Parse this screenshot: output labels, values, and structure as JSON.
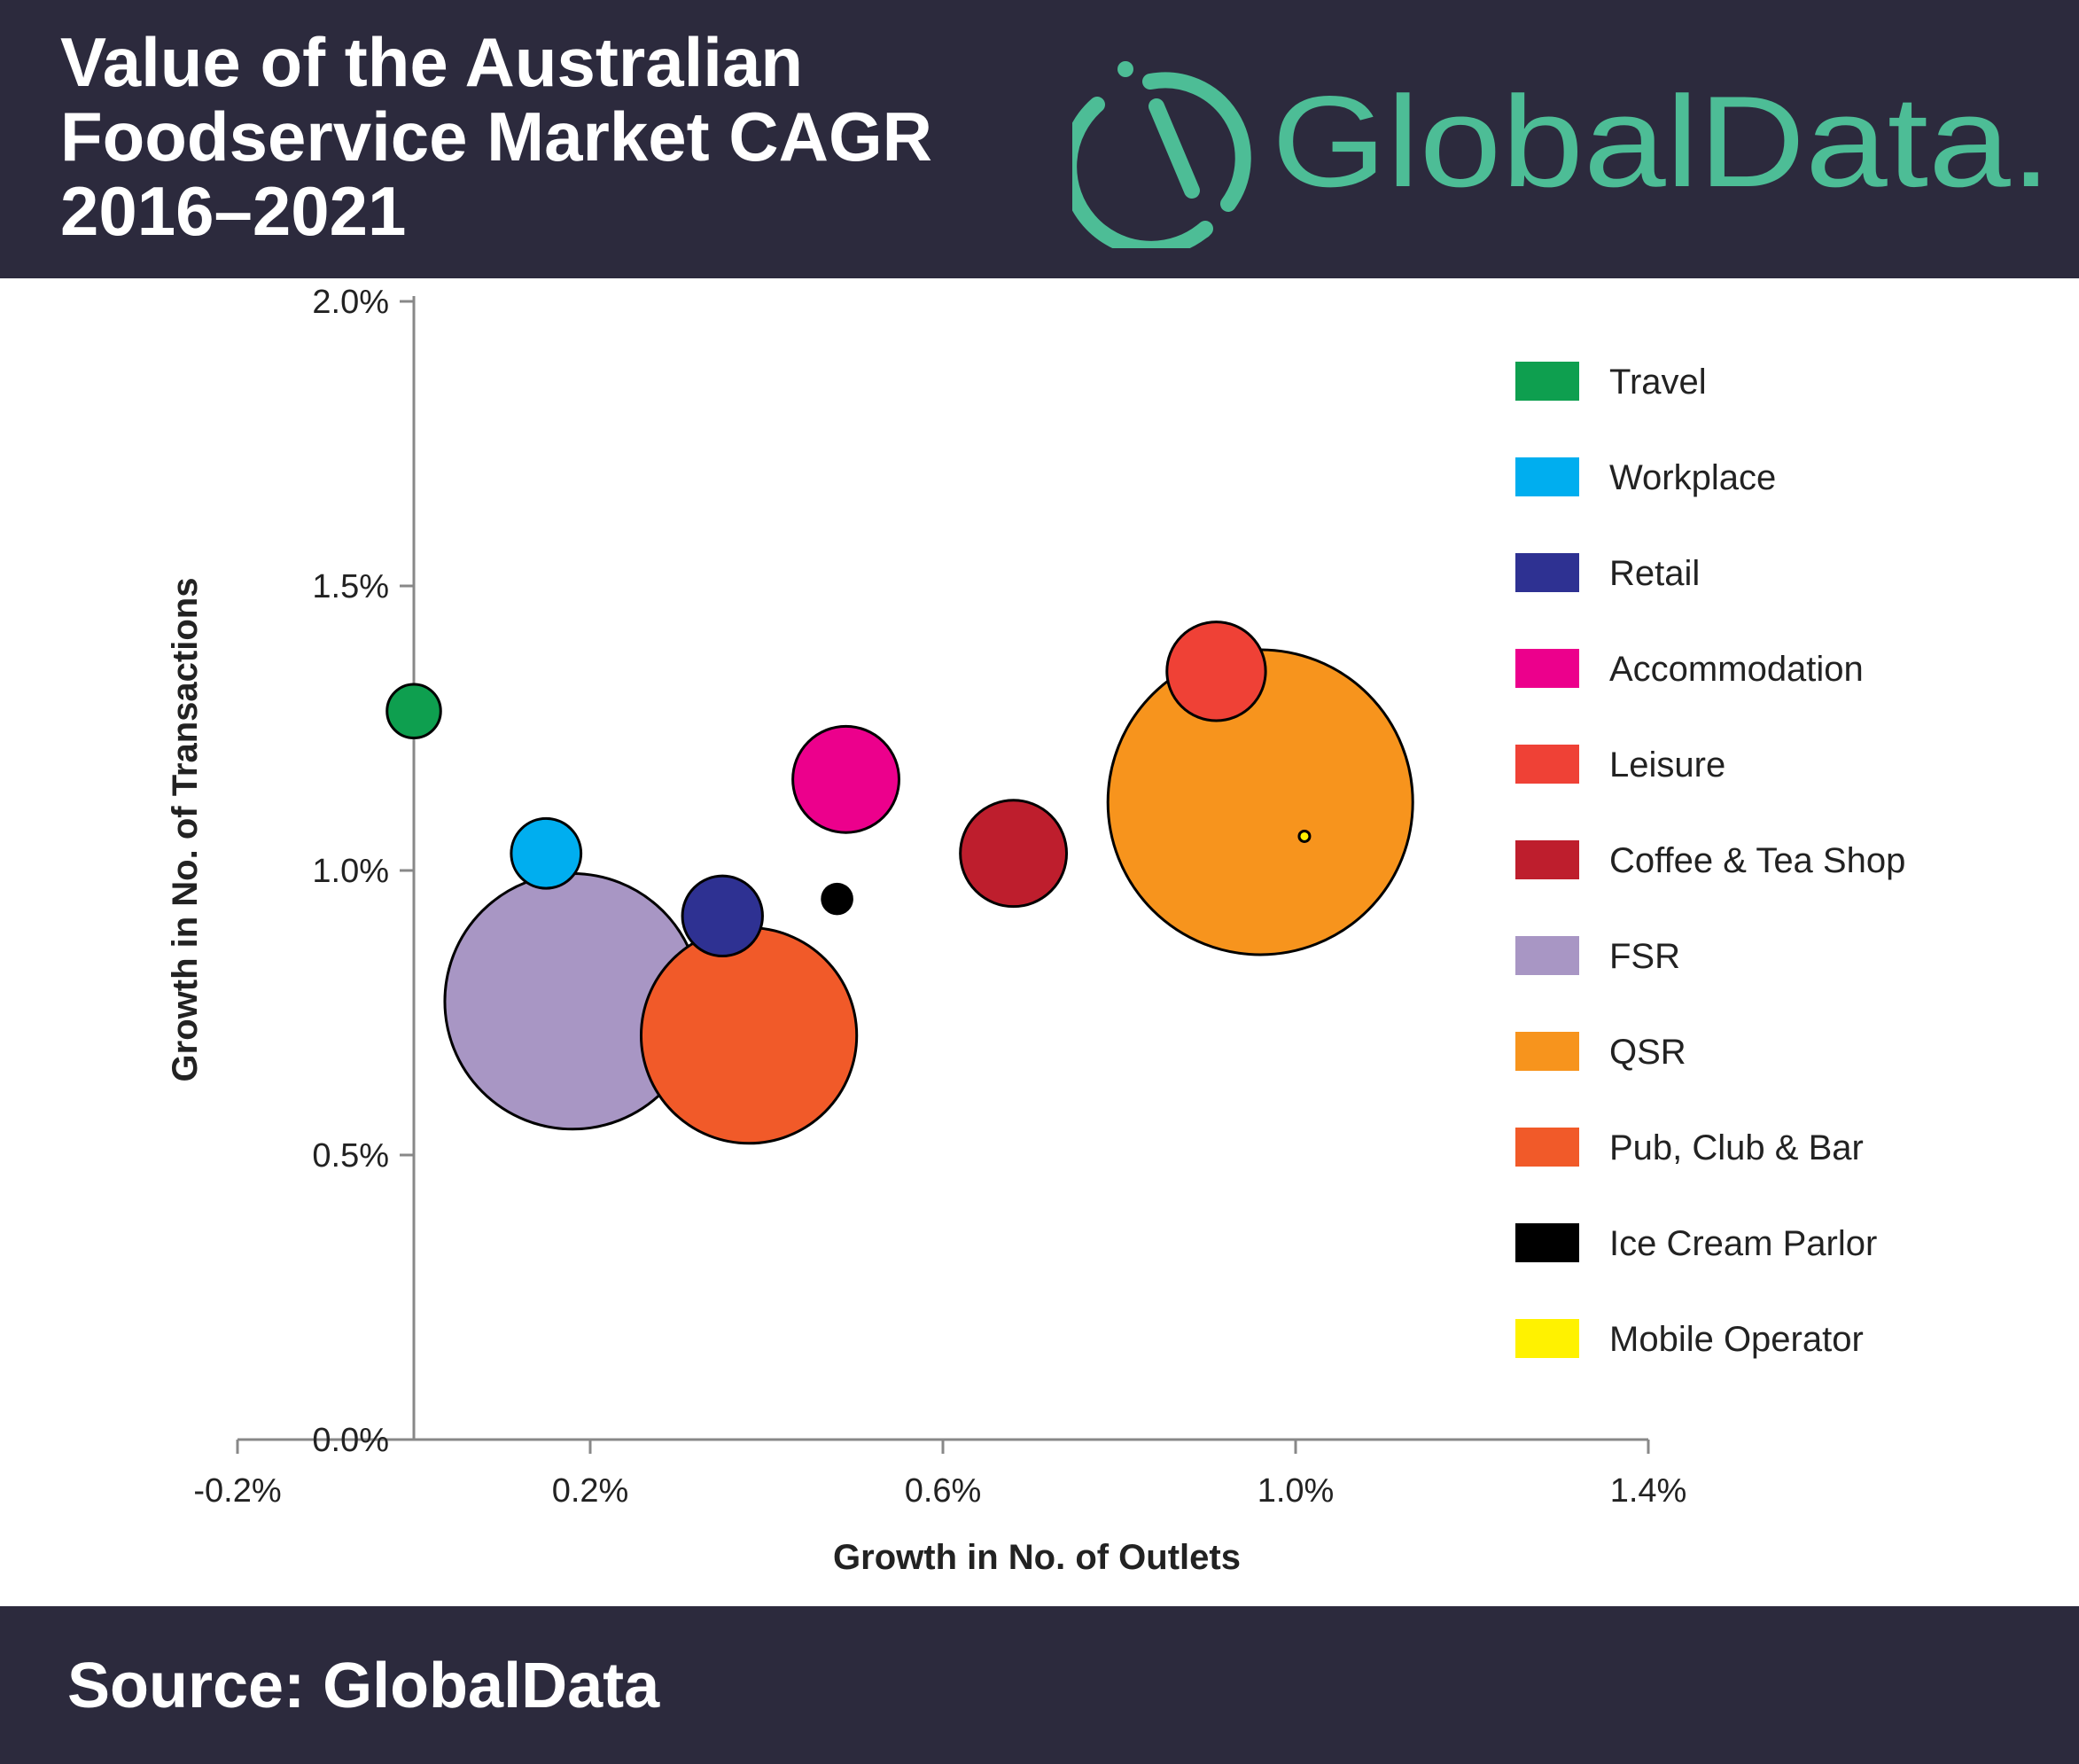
{
  "header": {
    "title_lines": [
      "Value of the Australian",
      "Foodservice Market CAGR",
      "2016–2021"
    ],
    "logo_text": "GlobalData."
  },
  "colors": {
    "header_bg": "#2c2a3d",
    "brand_green": "#4dbd96"
  },
  "chart_data": {
    "type": "scatter",
    "variant": "bubble",
    "xlabel": "Growth in No. of Outlets",
    "ylabel": "Growth in No. of Transactions",
    "xlim": [
      -0.2,
      1.4
    ],
    "ylim": [
      0.0,
      2.0
    ],
    "xticks": [
      -0.2,
      0.2,
      0.6,
      1.0,
      1.4
    ],
    "xtick_labels": [
      "-0.2%",
      "0.2%",
      "0.6%",
      "1.0%",
      "1.4%"
    ],
    "yticks": [
      0.0,
      0.5,
      1.0,
      1.5,
      2.0
    ],
    "ytick_labels": [
      "0.0%",
      "0.5%",
      "1.0%",
      "1.5%",
      "2.0%"
    ],
    "legend_position": "right",
    "grid": false,
    "series": [
      {
        "name": "Travel",
        "color": "#0e9f4f",
        "x": 0.0,
        "y": 1.28,
        "size": 1.3
      },
      {
        "name": "Workplace",
        "color": "#00aeef",
        "x": 0.15,
        "y": 1.03,
        "size": 2.2
      },
      {
        "name": "Retail",
        "color": "#2e3192",
        "x": 0.35,
        "y": 0.92,
        "size": 2.9
      },
      {
        "name": "Accommodation",
        "color": "#ec008c",
        "x": 0.49,
        "y": 1.16,
        "size": 5.1
      },
      {
        "name": "Leisure",
        "color": "#ef4136",
        "x": 0.91,
        "y": 1.35,
        "size": 4.4
      },
      {
        "name": "Coffee & Tea Shop",
        "color": "#be1e2d",
        "x": 0.68,
        "y": 1.03,
        "size": 5.1
      },
      {
        "name": "FSR",
        "color": "#a896c4",
        "x": 0.18,
        "y": 0.77,
        "size": 29.5
      },
      {
        "name": "QSR",
        "color": "#f7941d",
        "x": 0.96,
        "y": 1.12,
        "size": 42.0
      },
      {
        "name": "Pub, Club & Bar",
        "color": "#f15a29",
        "x": 0.38,
        "y": 0.71,
        "size": 21.0
      },
      {
        "name": "Ice Cream Parlor",
        "color": "#000000",
        "x": 0.48,
        "y": 0.95,
        "size": 0.4
      },
      {
        "name": "Mobile Operator",
        "color": "#fff200",
        "x": 1.01,
        "y": 1.06,
        "size": 0.05
      }
    ]
  },
  "footer": {
    "source": "Source: GlobalData"
  }
}
